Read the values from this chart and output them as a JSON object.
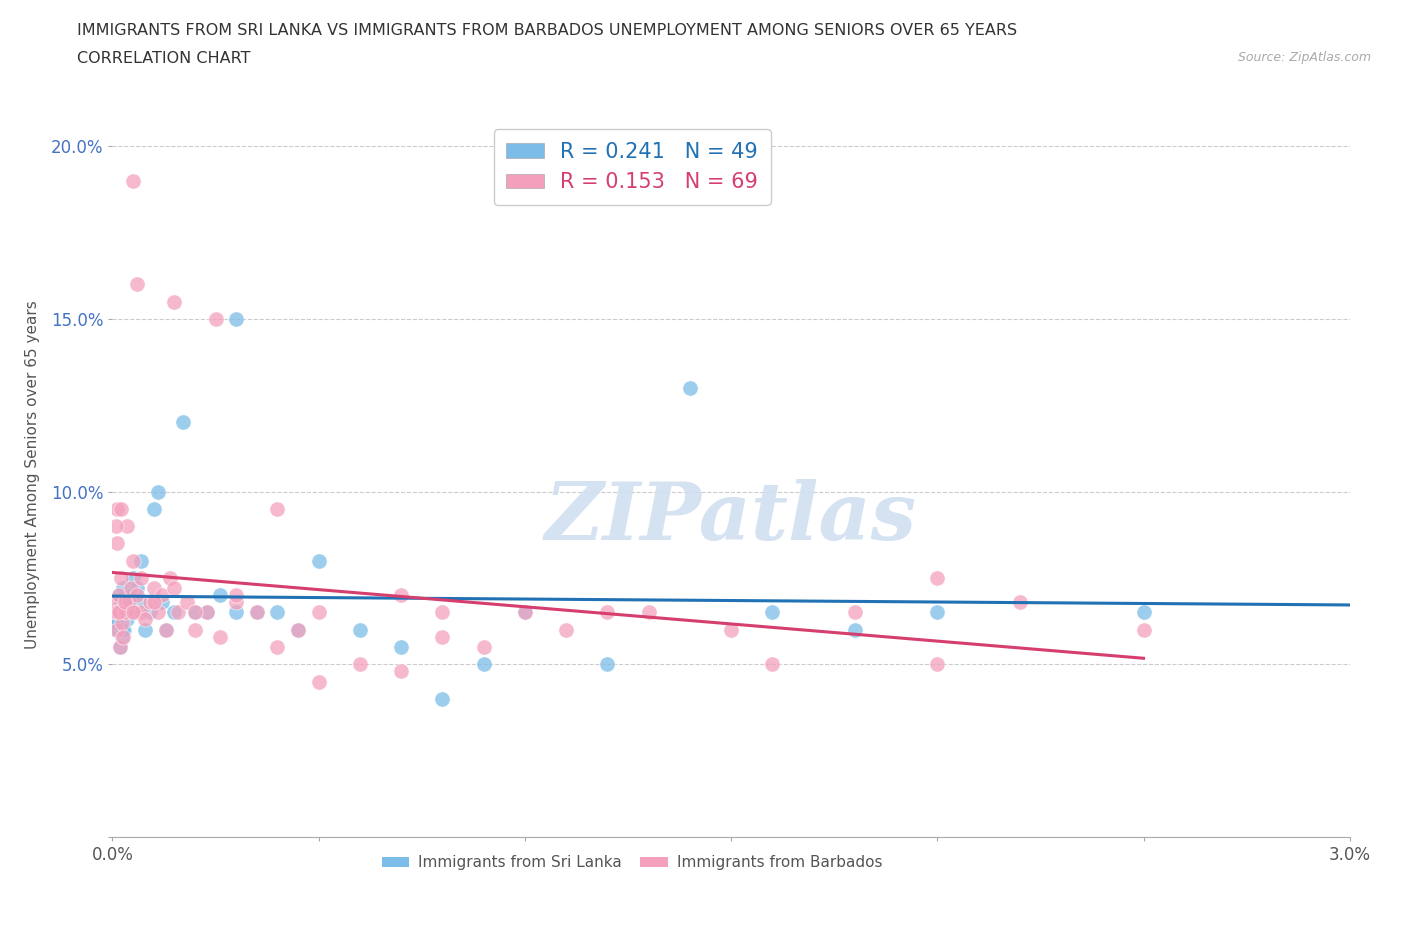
{
  "title_line1": "IMMIGRANTS FROM SRI LANKA VS IMMIGRANTS FROM BARBADOS UNEMPLOYMENT AMONG SENIORS OVER 65 YEARS",
  "title_line2": "CORRELATION CHART",
  "source_text": "Source: ZipAtlas.com",
  "ylabel": "Unemployment Among Seniors over 65 years",
  "xlim": [
    0.0,
    0.03
  ],
  "ylim": [
    0.0,
    0.21
  ],
  "x_ticks": [
    0.0,
    0.005,
    0.01,
    0.015,
    0.02,
    0.025,
    0.03
  ],
  "x_tick_labels": [
    "0.0%",
    "",
    "",
    "",
    "",
    "",
    "3.0%"
  ],
  "y_ticks": [
    0.0,
    0.05,
    0.1,
    0.15,
    0.2
  ],
  "y_tick_labels": [
    "",
    "5.0%",
    "10.0%",
    "15.0%",
    "20.0%"
  ],
  "sri_lanka_color": "#7bbde8",
  "barbados_color": "#f4a0bc",
  "sri_lanka_line_color": "#2171b5",
  "barbados_line_color": "#d63e6e",
  "sri_lanka_R": 0.241,
  "sri_lanka_N": 49,
  "barbados_R": 0.153,
  "barbados_N": 69,
  "watermark_text": "ZIPatlas",
  "sl_x": [
    8e-05,
    0.0001,
    0.00012,
    0.00015,
    0.00018,
    0.0002,
    0.00022,
    0.00025,
    0.00028,
    0.0003,
    0.00035,
    0.0004,
    0.00045,
    0.0005,
    0.00055,
    0.0006,
    0.00065,
    0.0007,
    0.0008,
    0.0009,
    0.001,
    0.0011,
    0.0012,
    0.0013,
    0.0015,
    0.0017,
    0.002,
    0.0023,
    0.0026,
    0.003,
    0.0035,
    0.004,
    0.0045,
    0.005,
    0.006,
    0.007,
    0.008,
    0.009,
    0.01,
    0.012,
    0.014,
    0.016,
    0.018,
    0.02,
    0.00015,
    0.00025,
    8e-05,
    0.025,
    0.003
  ],
  "sl_y": [
    0.06,
    0.065,
    0.062,
    0.07,
    0.055,
    0.068,
    0.058,
    0.072,
    0.06,
    0.065,
    0.063,
    0.068,
    0.07,
    0.075,
    0.065,
    0.072,
    0.068,
    0.08,
    0.06,
    0.065,
    0.095,
    0.1,
    0.068,
    0.06,
    0.065,
    0.12,
    0.065,
    0.065,
    0.07,
    0.065,
    0.065,
    0.065,
    0.06,
    0.08,
    0.06,
    0.055,
    0.04,
    0.05,
    0.065,
    0.05,
    0.13,
    0.065,
    0.06,
    0.065,
    0.06,
    0.06,
    0.062,
    0.065,
    0.15
  ],
  "bb_x": [
    5e-05,
    8e-05,
    0.0001,
    0.00012,
    0.00015,
    0.00018,
    0.0002,
    0.00022,
    0.00025,
    0.0003,
    0.00035,
    0.0004,
    0.00045,
    0.0005,
    0.00055,
    0.0006,
    0.0007,
    0.0008,
    0.0009,
    0.001,
    0.0011,
    0.0012,
    0.0013,
    0.0014,
    0.0016,
    0.0018,
    0.002,
    0.0023,
    0.0026,
    0.003,
    0.0035,
    0.004,
    0.0045,
    0.005,
    0.006,
    0.007,
    0.008,
    0.009,
    0.01,
    0.011,
    0.013,
    0.015,
    0.018,
    0.02,
    0.022,
    0.025,
    8e-05,
    0.00012,
    0.00016,
    0.0001,
    0.0002,
    0.0003,
    0.0005,
    0.0007,
    0.001,
    0.0015,
    0.002,
    0.003,
    0.005,
    0.007,
    0.0005,
    0.0015,
    0.0025,
    0.0006,
    0.004,
    0.008,
    0.012,
    0.016,
    0.02
  ],
  "bb_y": [
    0.065,
    0.068,
    0.06,
    0.065,
    0.07,
    0.055,
    0.075,
    0.062,
    0.058,
    0.065,
    0.09,
    0.068,
    0.072,
    0.08,
    0.065,
    0.07,
    0.065,
    0.063,
    0.068,
    0.072,
    0.065,
    0.07,
    0.06,
    0.075,
    0.065,
    0.068,
    0.06,
    0.065,
    0.058,
    0.068,
    0.065,
    0.055,
    0.06,
    0.065,
    0.05,
    0.07,
    0.058,
    0.055,
    0.065,
    0.06,
    0.065,
    0.06,
    0.065,
    0.05,
    0.068,
    0.06,
    0.09,
    0.085,
    0.065,
    0.095,
    0.095,
    0.068,
    0.065,
    0.075,
    0.068,
    0.072,
    0.065,
    0.07,
    0.045,
    0.048,
    0.19,
    0.155,
    0.15,
    0.16,
    0.095,
    0.065,
    0.065,
    0.05,
    0.075
  ]
}
